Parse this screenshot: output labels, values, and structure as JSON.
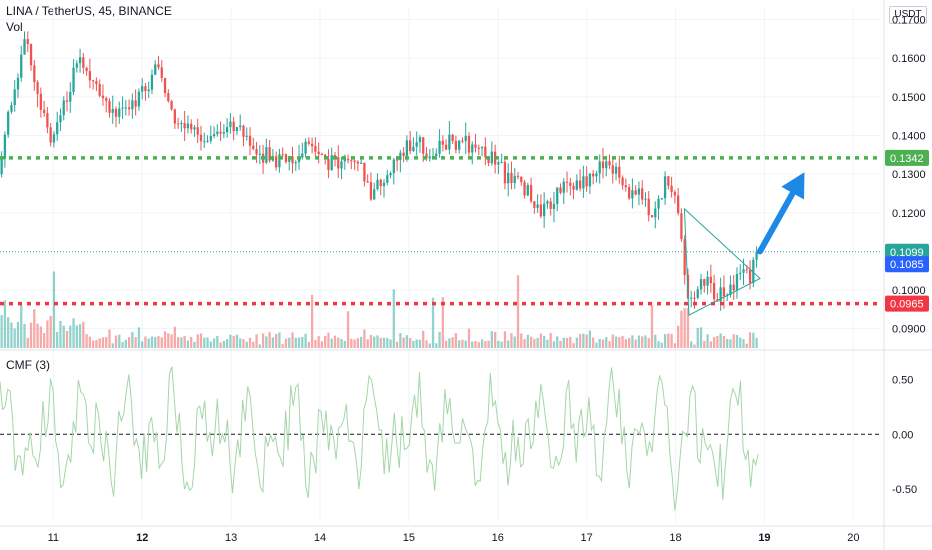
{
  "header": {
    "symbol_line": "LINA / TetherUS, 45, BINANCE",
    "vol_label": "Vol",
    "cmf_label": "CMF (3)",
    "currency": "USDT"
  },
  "colors": {
    "up": "#26a69a",
    "down": "#ef5350",
    "green_level": "#4caf50",
    "red_level": "#f23645",
    "last_price": "#26a69a",
    "blue_badge": "#2962ff",
    "triangle": "#26a69a",
    "arrow": "#1e88e5",
    "cmf_line": "#a5d6a7",
    "grid": "#f0f3fa"
  },
  "chart_data": [
    {
      "type": "candlestick",
      "title": "LINA / TetherUS, 45, BINANCE",
      "ylim": [
        0.085,
        0.173
      ],
      "xlim": [
        10.4,
        20.3
      ],
      "y_ticks": [
        0.17,
        0.16,
        0.15,
        0.14,
        0.13,
        0.12,
        0.1,
        0.09
      ],
      "y_tick_labels": [
        "0.1700",
        "0.1600",
        "0.1500",
        "0.1400",
        "0.1300",
        "0.1200",
        "0.1000",
        "0.0900"
      ],
      "x_ticks": [
        11,
        12,
        13,
        14,
        15,
        16,
        17,
        18,
        19,
        20
      ],
      "x_tick_labels": [
        "11",
        "12",
        "13",
        "14",
        "15",
        "16",
        "17",
        "18",
        "19",
        "20"
      ],
      "x_tick_bold": [
        false,
        true,
        false,
        false,
        false,
        false,
        false,
        false,
        true,
        false
      ],
      "anchors": [
        {
          "x": 10.4,
          "y": 0.13
        },
        {
          "x": 10.55,
          "y": 0.15
        },
        {
          "x": 10.7,
          "y": 0.165
        },
        {
          "x": 10.85,
          "y": 0.15
        },
        {
          "x": 11.0,
          "y": 0.138
        },
        {
          "x": 11.15,
          "y": 0.148
        },
        {
          "x": 11.3,
          "y": 0.16
        },
        {
          "x": 11.5,
          "y": 0.152
        },
        {
          "x": 11.7,
          "y": 0.146
        },
        {
          "x": 11.9,
          "y": 0.148
        },
        {
          "x": 12.05,
          "y": 0.152
        },
        {
          "x": 12.2,
          "y": 0.158
        },
        {
          "x": 12.4,
          "y": 0.142
        },
        {
          "x": 12.6,
          "y": 0.14
        },
        {
          "x": 12.9,
          "y": 0.14
        },
        {
          "x": 13.1,
          "y": 0.143
        },
        {
          "x": 13.3,
          "y": 0.135
        },
        {
          "x": 13.6,
          "y": 0.134
        },
        {
          "x": 13.9,
          "y": 0.136
        },
        {
          "x": 14.2,
          "y": 0.132
        },
        {
          "x": 14.45,
          "y": 0.133
        },
        {
          "x": 14.6,
          "y": 0.125
        },
        {
          "x": 14.8,
          "y": 0.13
        },
        {
          "x": 15.0,
          "y": 0.138
        },
        {
          "x": 15.3,
          "y": 0.136
        },
        {
          "x": 15.6,
          "y": 0.139
        },
        {
          "x": 15.9,
          "y": 0.135
        },
        {
          "x": 16.1,
          "y": 0.13
        },
        {
          "x": 16.3,
          "y": 0.128
        },
        {
          "x": 16.5,
          "y": 0.12
        },
        {
          "x": 16.7,
          "y": 0.125
        },
        {
          "x": 16.9,
          "y": 0.128
        },
        {
          "x": 17.1,
          "y": 0.129
        },
        {
          "x": 17.25,
          "y": 0.134
        },
        {
          "x": 17.45,
          "y": 0.126
        },
        {
          "x": 17.65,
          "y": 0.124
        },
        {
          "x": 17.8,
          "y": 0.12
        },
        {
          "x": 17.9,
          "y": 0.128
        },
        {
          "x": 18.05,
          "y": 0.121
        },
        {
          "x": 18.15,
          "y": 0.096
        },
        {
          "x": 18.35,
          "y": 0.102
        },
        {
          "x": 18.5,
          "y": 0.098
        },
        {
          "x": 18.7,
          "y": 0.102
        },
        {
          "x": 18.85,
          "y": 0.104
        },
        {
          "x": 18.93,
          "y": 0.1099
        }
      ],
      "levels": [
        {
          "name": "resistance",
          "value": 0.1342,
          "label": "0.1342",
          "style": "dotted",
          "color": "#4caf50"
        },
        {
          "name": "support",
          "value": 0.0965,
          "label": "0.0965",
          "style": "dotted",
          "color": "#f23645"
        },
        {
          "name": "last-price",
          "value": 0.1099,
          "label": "0.1099",
          "style": "thin-dotted",
          "color": "#26a69a"
        },
        {
          "name": "blue-price",
          "value": 0.1085,
          "label": "0.1085",
          "style": "badge-only",
          "color": "#2962ff"
        }
      ],
      "triangle": [
        {
          "x": 18.1,
          "y": 0.121
        },
        {
          "x": 18.95,
          "y": 0.103
        },
        {
          "x": 18.15,
          "y": 0.0935
        }
      ],
      "arrow": {
        "from": {
          "x": 18.95,
          "y": 0.11
        },
        "to": {
          "x": 19.45,
          "y": 0.1305
        }
      }
    },
    {
      "type": "line",
      "name": "CMF (3)",
      "ylim": [
        -0.8,
        0.75
      ],
      "y_ticks": [
        0.5,
        0.0,
        -0.5
      ],
      "y_tick_labels": [
        "0.50",
        "0.00",
        "-0.50"
      ],
      "zero_line": true
    }
  ]
}
